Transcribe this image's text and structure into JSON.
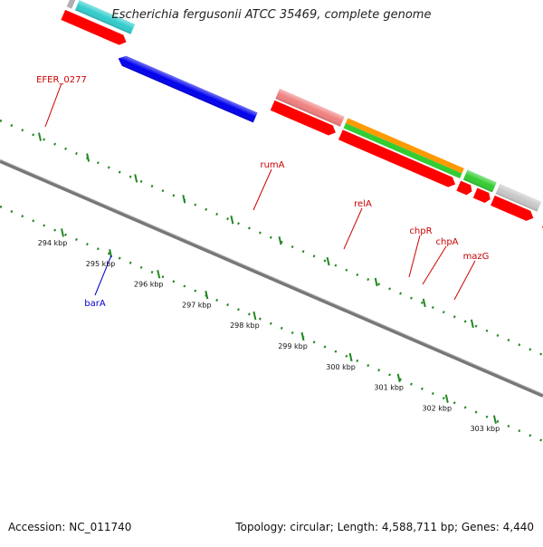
{
  "title": "Escherichia fergusonii ATCC 35469, complete genome",
  "footer": {
    "accession": "Accession: NC_011740",
    "summary": "Topology: circular; Length: 4,588,711 bp; Genes: 4,440"
  },
  "gene_labels": {
    "efer_0277": "EFER_0277",
    "ruma": "rumA",
    "rela": "relA",
    "chpr": "chpR",
    "chpa": "chpA",
    "mazg": "mazG",
    "bara": "barA"
  },
  "scale_labels": [
    "294 kbp",
    "295 kbp",
    "296 kbp",
    "297 kbp",
    "298 kbp",
    "299 kbp",
    "300 kbp",
    "301 kbp",
    "302 kbp",
    "303 kbp"
  ],
  "colors": {
    "red": "#ff0000",
    "blue": "#0000ee",
    "cyan": "#33cccc",
    "pink": "#f08080",
    "orange": "#ff9900",
    "green": "#33cc33",
    "gray": "#c8c8c8",
    "skyblue": "#33bbee",
    "tick_green": "#228822",
    "label_red": "#cc0000",
    "label_blue": "#0000cc",
    "backbone": "#777777"
  }
}
